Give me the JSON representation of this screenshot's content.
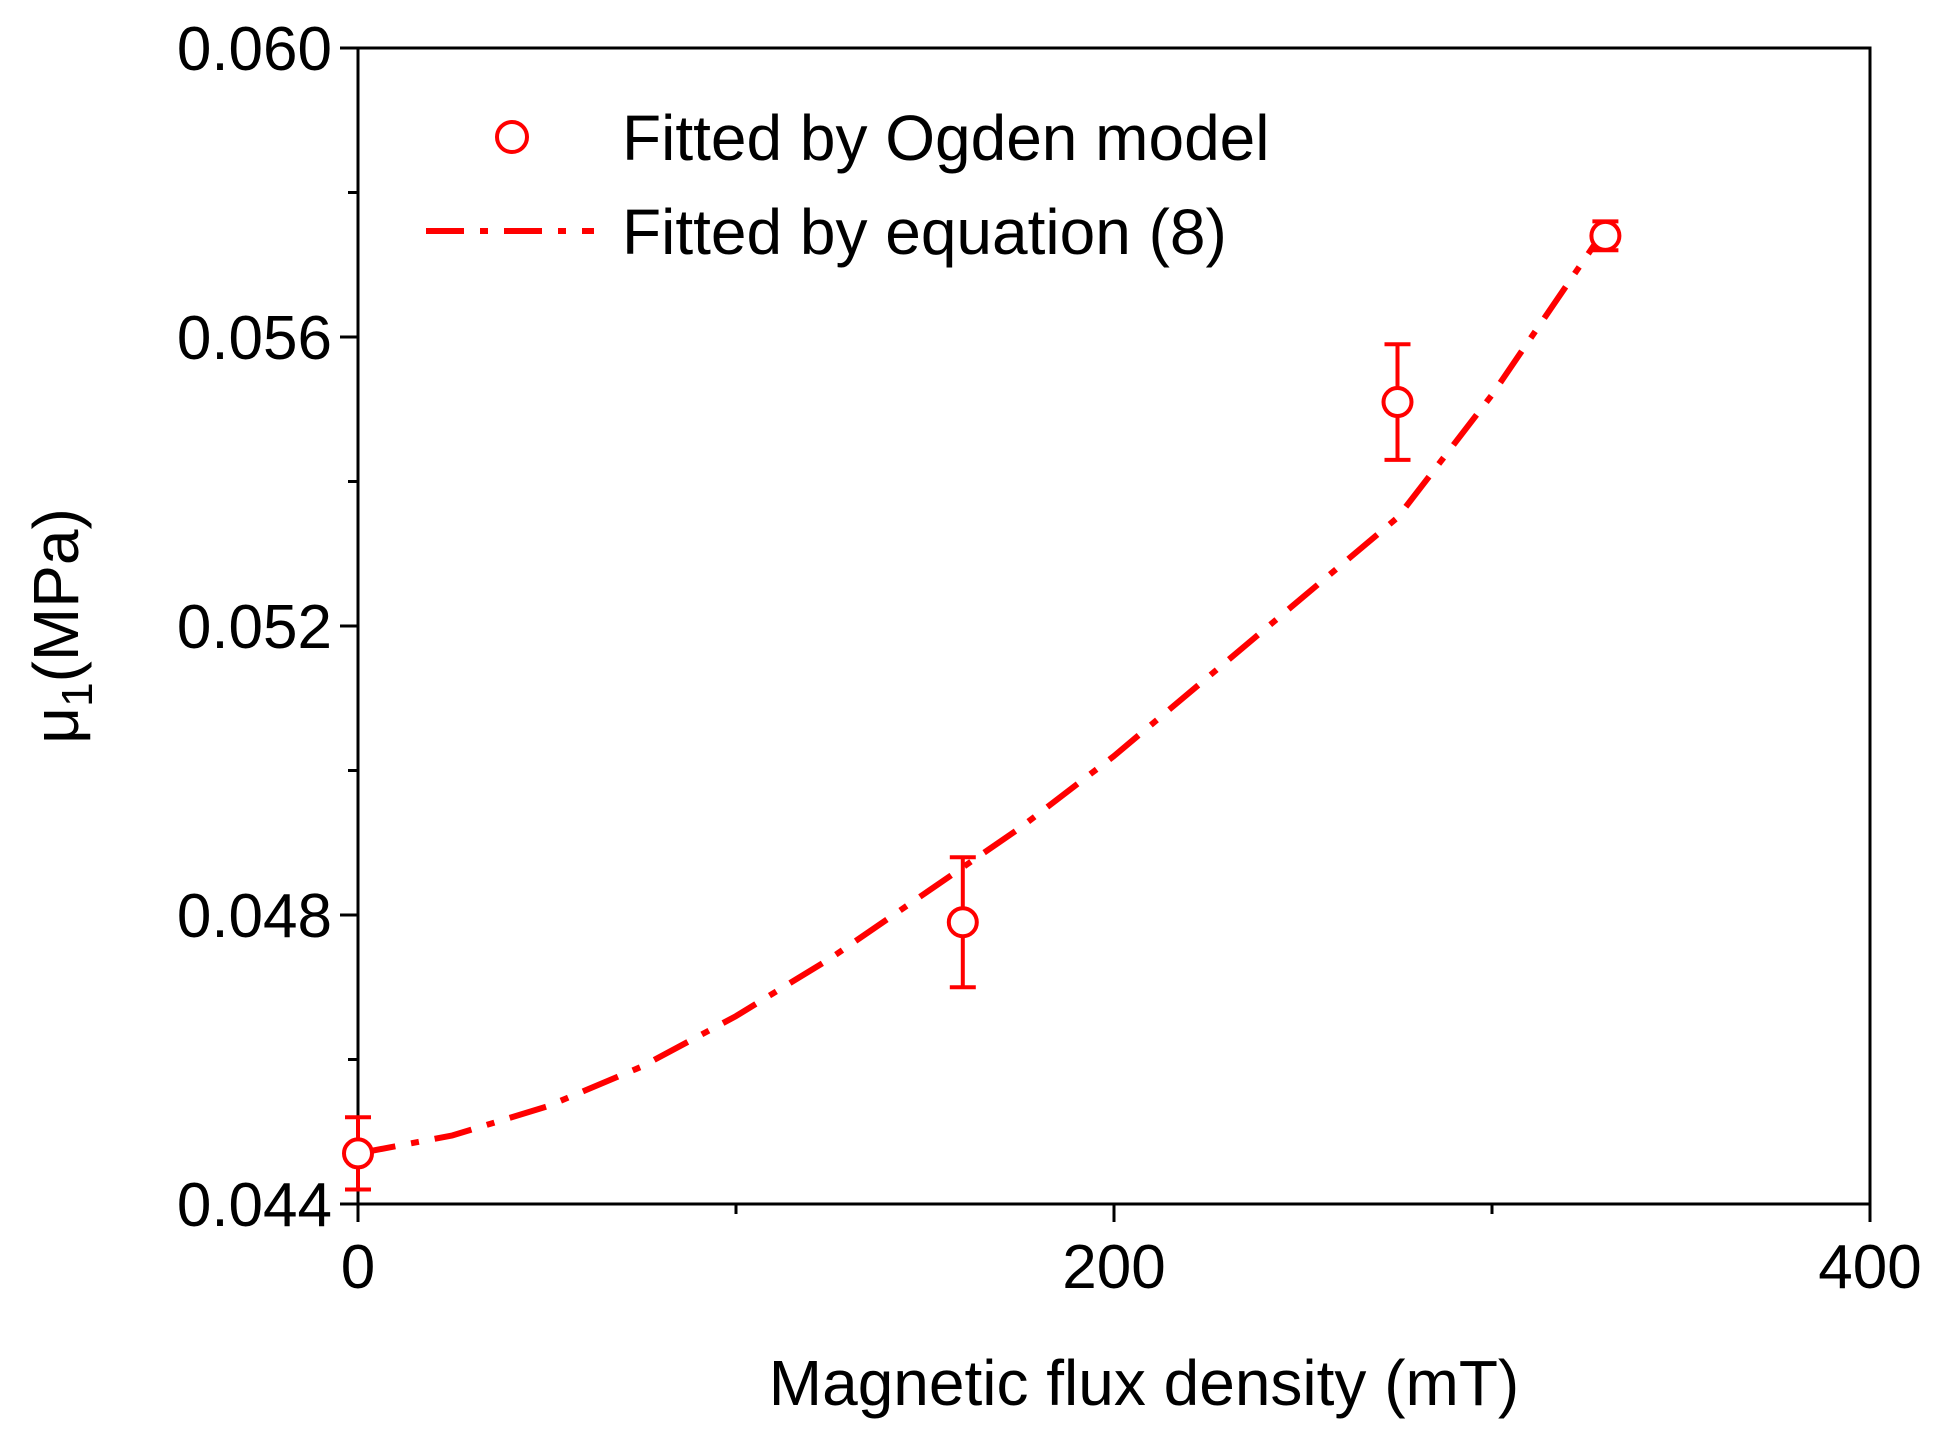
{
  "chart_data": {
    "type": "scatter",
    "title": "",
    "xlabel": "Magnetic flux density (mT)",
    "ylabel_main": "μ",
    "ylabel_sub": "1",
    "ylabel_unit": "(MPa)",
    "xlim": [
      0,
      400
    ],
    "ylim": [
      0.044,
      0.06
    ],
    "x_ticks": [
      0,
      200,
      400
    ],
    "x_tick_labels": [
      "0",
      "200",
      "400"
    ],
    "x_minor_ticks": [
      100,
      300
    ],
    "y_ticks": [
      0.044,
      0.048,
      0.052,
      0.056,
      0.06
    ],
    "y_tick_labels": [
      "0.044",
      "0.048",
      "0.052",
      "0.056",
      "0.060"
    ],
    "y_minor_ticks": [
      0.046,
      0.05,
      0.054,
      0.058
    ],
    "grid": false,
    "legend_position": "top-left",
    "color": "#ff0000",
    "series": [
      {
        "name": "Fitted by Ogden model",
        "kind": "points-with-error",
        "x": [
          0,
          160,
          275,
          330
        ],
        "y": [
          0.0447,
          0.0479,
          0.0551,
          0.0574
        ],
        "yerr": [
          0.0005,
          0.0009,
          0.0008,
          0.0002
        ]
      },
      {
        "name": "Fitted by equation (8)",
        "kind": "dash-dot-line",
        "x": [
          0,
          25,
          50,
          75,
          100,
          125,
          150,
          175,
          200,
          225,
          250,
          275,
          300,
          330
        ],
        "y": [
          0.0447,
          0.04495,
          0.04535,
          0.0459,
          0.0466,
          0.0474,
          0.0483,
          0.0492,
          0.0502,
          0.0513,
          0.0524,
          0.0535,
          0.0552,
          0.0575
        ]
      }
    ]
  }
}
